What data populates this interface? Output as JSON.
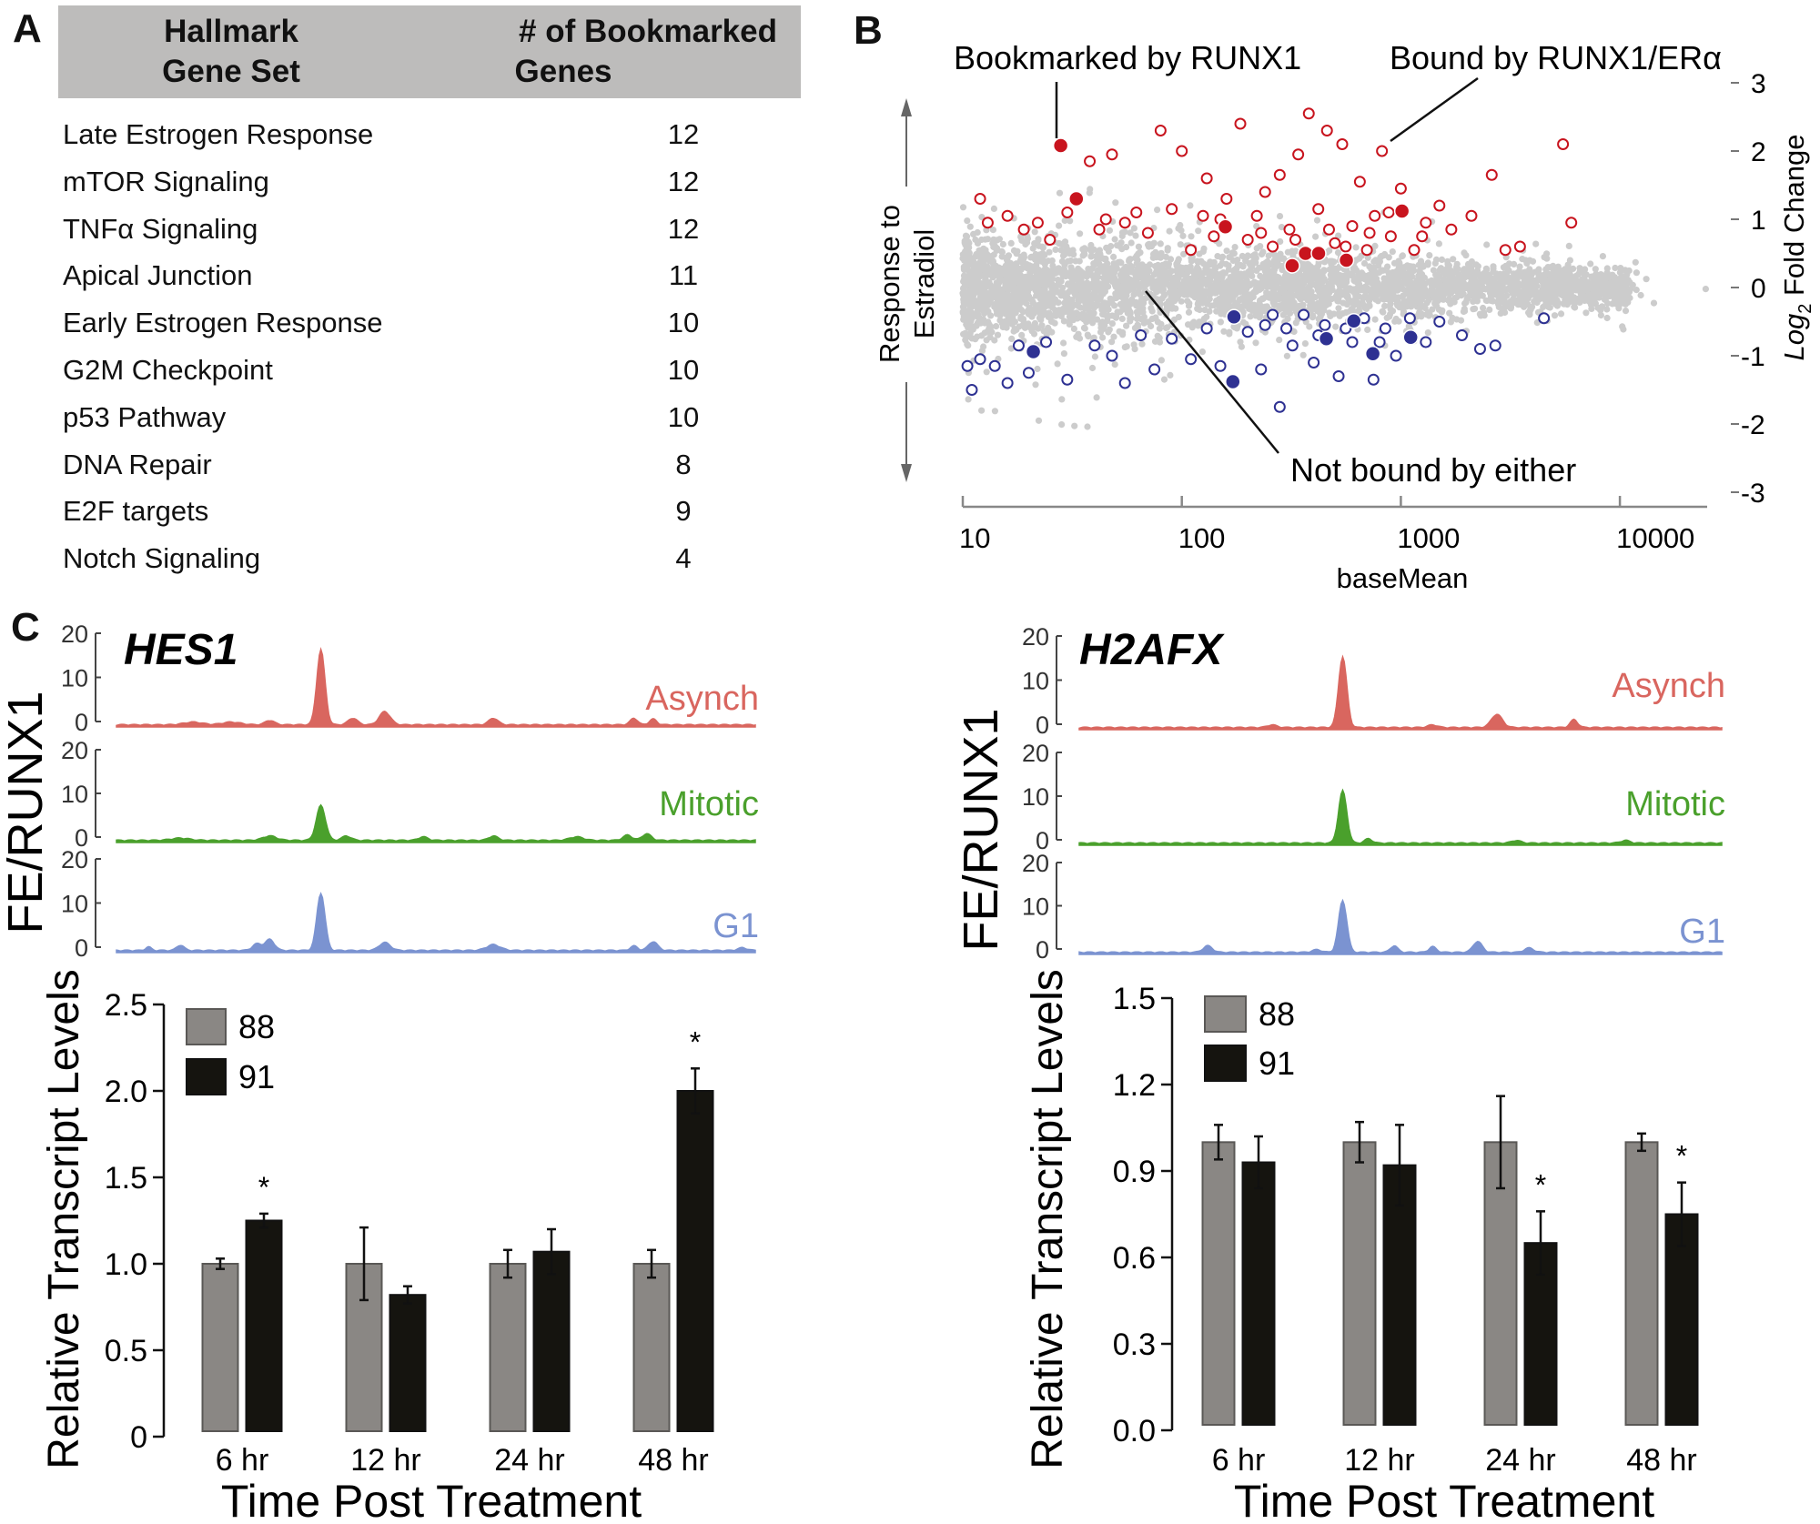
{
  "panel_labels": {
    "a": "A",
    "b": "B",
    "c": "C"
  },
  "panel_a": {
    "headers": [
      "Hallmark\nGene Set",
      "# of Bookmarked\nGenes"
    ],
    "header_lines": [
      [
        "Hallmark",
        "Gene Set"
      ],
      [
        "# of Bookmarked",
        "Genes"
      ]
    ],
    "rows": [
      {
        "name": "Late Estrogen Response",
        "count": "12"
      },
      {
        "name": "mTOR Signaling",
        "count": "12"
      },
      {
        "name": "TNFα Signaling",
        "count": "12"
      },
      {
        "name": "Apical Junction",
        "count": "11"
      },
      {
        "name": "Early Estrogen Response",
        "count": "10"
      },
      {
        "name": "G2M Checkpoint",
        "count": "10"
      },
      {
        "name": "p53 Pathway",
        "count": "10"
      },
      {
        "name": "DNA Repair",
        "count": "8"
      },
      {
        "name": "E2F targets",
        "count": "9"
      },
      {
        "name": "Notch Signaling",
        "count": "4"
      }
    ]
  },
  "chart_data": [
    {
      "id": "panel-b",
      "type": "scatter",
      "xlabel": "baseMean",
      "ylabel_parts": {
        "prefix": "Log",
        "sub": "2",
        "rest": " Fold Change"
      },
      "left_label": [
        "Response to",
        "Estradiol"
      ],
      "x_scale": "log",
      "xlim": [
        10,
        20000
      ],
      "ylim": [
        -3,
        3
      ],
      "x_ticks": [
        "10",
        "100",
        "1000",
        "10000"
      ],
      "x_tick_values": [
        10,
        100,
        1000,
        10000
      ],
      "y_ticks": [
        "3",
        "2",
        "1",
        "0",
        "-1",
        "-2",
        "-3"
      ],
      "y_tick_values": [
        3,
        2,
        1,
        0,
        -1,
        -2,
        -3
      ],
      "annotations": {
        "bookmarked": "Bookmarked by RUNX1",
        "bound": "Bound by RUNX1/ERα",
        "not_bound": "Not bound by either"
      },
      "colors": {
        "not_bound": "#cccccc",
        "up": "#c8141e",
        "down": "#2e3192"
      },
      "series": {
        "up_bound": [
          [
            12,
            1.3
          ],
          [
            13,
            0.95
          ],
          [
            16,
            1.05
          ],
          [
            19,
            0.85
          ],
          [
            22,
            0.95
          ],
          [
            25,
            0.7
          ],
          [
            30,
            1.1
          ],
          [
            38,
            1.85
          ],
          [
            42,
            0.85
          ],
          [
            48,
            1.95
          ],
          [
            55,
            0.95
          ],
          [
            62,
            1.1
          ],
          [
            70,
            0.8
          ],
          [
            80,
            2.3
          ],
          [
            90,
            1.15
          ],
          [
            100,
            2.0
          ],
          [
            110,
            0.55
          ],
          [
            125,
            1.05
          ],
          [
            130,
            1.6
          ],
          [
            140,
            0.75
          ],
          [
            160,
            1.3
          ],
          [
            185,
            2.4
          ],
          [
            200,
            0.7
          ],
          [
            220,
            1.05
          ],
          [
            240,
            1.4
          ],
          [
            260,
            0.6
          ],
          [
            280,
            1.65
          ],
          [
            310,
            0.85
          ],
          [
            340,
            1.95
          ],
          [
            380,
            2.55
          ],
          [
            420,
            1.15
          ],
          [
            460,
            2.3
          ],
          [
            500,
            0.65
          ],
          [
            540,
            2.1
          ],
          [
            600,
            0.9
          ],
          [
            650,
            1.55
          ],
          [
            700,
            0.55
          ],
          [
            760,
            1.05
          ],
          [
            820,
            2.0
          ],
          [
            900,
            0.75
          ],
          [
            1000,
            1.45
          ],
          [
            1150,
            0.55
          ],
          [
            1300,
            0.95
          ],
          [
            1500,
            1.2
          ],
          [
            1700,
            0.85
          ],
          [
            2100,
            1.05
          ],
          [
            2600,
            1.65
          ],
          [
            3000,
            0.55
          ],
          [
            3500,
            0.6
          ],
          [
            5500,
            2.1
          ],
          [
            6000,
            0.95
          ],
          [
            45,
            1.0
          ],
          [
            150,
            1.0
          ],
          [
            230,
            0.8
          ],
          [
            330,
            0.7
          ],
          [
            470,
            0.85
          ],
          [
            560,
            0.6
          ],
          [
            720,
            0.8
          ],
          [
            880,
            1.1
          ],
          [
            1250,
            0.75
          ]
        ],
        "up_bookmarked": [
          [
            28,
            2.08
          ],
          [
            33,
            1.3
          ],
          [
            158,
            0.89
          ],
          [
            319,
            0.32
          ],
          [
            367,
            0.5
          ],
          [
            421,
            0.5
          ],
          [
            564,
            0.4
          ],
          [
            1012,
            1.12
          ]
        ],
        "down_bound": [
          [
            10.5,
            -1.15
          ],
          [
            11,
            -1.5
          ],
          [
            12,
            -1.05
          ],
          [
            14,
            -1.15
          ],
          [
            16,
            -1.4
          ],
          [
            18,
            -0.85
          ],
          [
            20,
            -1.25
          ],
          [
            24,
            -0.8
          ],
          [
            30,
            -1.35
          ],
          [
            40,
            -0.85
          ],
          [
            48,
            -1.0
          ],
          [
            55,
            -1.4
          ],
          [
            65,
            -0.7
          ],
          [
            75,
            -1.2
          ],
          [
            90,
            -0.75
          ],
          [
            110,
            -1.05
          ],
          [
            130,
            -0.6
          ],
          [
            150,
            -1.15
          ],
          [
            200,
            -0.65
          ],
          [
            230,
            -1.2
          ],
          [
            260,
            -0.4
          ],
          [
            280,
            -1.75
          ],
          [
            320,
            -0.85
          ],
          [
            360,
            -0.4
          ],
          [
            400,
            -1.1
          ],
          [
            450,
            -0.55
          ],
          [
            520,
            -1.3
          ],
          [
            600,
            -0.8
          ],
          [
            680,
            -0.45
          ],
          [
            750,
            -1.35
          ],
          [
            850,
            -0.6
          ],
          [
            950,
            -1.0
          ],
          [
            1100,
            -0.45
          ],
          [
            1300,
            -0.8
          ],
          [
            1500,
            -0.5
          ],
          [
            1900,
            -0.7
          ],
          [
            2300,
            -0.9
          ],
          [
            2700,
            -0.85
          ],
          [
            4500,
            -0.45
          ],
          [
            240,
            -0.55
          ],
          [
            300,
            -0.6
          ],
          [
            420,
            -0.7
          ],
          [
            560,
            -0.6
          ],
          [
            800,
            -0.8
          ]
        ],
        "down_bookmarked": [
          [
            21,
            -0.94
          ],
          [
            173,
            -0.43
          ],
          [
            171,
            -1.38
          ],
          [
            457,
            -0.75
          ],
          [
            610,
            -0.49
          ],
          [
            745,
            -0.97
          ],
          [
            1109,
            -0.73
          ]
        ]
      }
    },
    {
      "id": "panel-c-hes1-tracks",
      "type": "area",
      "gene": "HES1",
      "ylabel": "FE/RUNX1",
      "y_ticks": [
        "20",
        "10",
        "0"
      ],
      "ylim": [
        0,
        20
      ],
      "x_unit": "bin",
      "tracks": [
        {
          "name": "Asynch",
          "color": "#d9665f",
          "peaks": [
            [
              32,
              17,
              0.9
            ],
            [
              42,
              3,
              1.2
            ],
            [
              37,
              1.5,
              1
            ],
            [
              59,
              1.5,
              1
            ],
            [
              81,
              1.5,
              0.8
            ],
            [
              84,
              1.3,
              0.8
            ],
            [
              24,
              1,
              1
            ],
            [
              12,
              0.6,
              2
            ],
            [
              18,
              0.6,
              2
            ]
          ]
        },
        {
          "name": "Mitotic",
          "color": "#4aa02c",
          "peaks": [
            [
              32,
              8,
              1
            ],
            [
              36,
              1,
              1
            ],
            [
              24,
              1,
              1.5
            ],
            [
              59,
              1,
              1
            ],
            [
              80,
              1.2,
              1
            ],
            [
              83,
              1.5,
              1
            ],
            [
              48,
              0.8,
              1
            ],
            [
              72,
              0.8,
              1.5
            ],
            [
              10,
              0.5,
              2
            ]
          ]
        },
        {
          "name": "G1",
          "color": "#7b93d1",
          "peaks": [
            [
              32,
              13,
              0.9
            ],
            [
              24,
              2.5,
              1
            ],
            [
              22,
              1.5,
              1
            ],
            [
              42,
              1.8,
              1.2
            ],
            [
              59,
              1.3,
              1.5
            ],
            [
              84,
              2,
              1
            ],
            [
              81,
              1,
              0.8
            ],
            [
              10,
              1.2,
              0.8
            ],
            [
              5,
              0.8,
              0.6
            ],
            [
              98,
              0.6,
              1
            ]
          ]
        }
      ]
    },
    {
      "id": "panel-c-h2afx-tracks",
      "type": "area",
      "gene": "H2AFX",
      "ylabel": "FE/RUNX1",
      "y_ticks": [
        "20",
        "10",
        "0"
      ],
      "ylim": [
        0,
        20
      ],
      "x_unit": "bin",
      "tracks": [
        {
          "name": "Asynch",
          "color": "#d9665f",
          "peaks": [
            [
              41,
              16,
              0.9
            ],
            [
              65,
              3,
              1.2
            ],
            [
              77,
              1.8,
              0.8
            ],
            [
              30,
              0.6,
              1
            ],
            [
              55,
              0.6,
              1
            ]
          ]
        },
        {
          "name": "Mitotic",
          "color": "#4aa02c",
          "peaks": [
            [
              41,
              12,
              0.9
            ],
            [
              45,
              1,
              0.8
            ],
            [
              68,
              0.6,
              1
            ],
            [
              85,
              0.6,
              1
            ]
          ]
        },
        {
          "name": "G1",
          "color": "#7b93d1",
          "peaks": [
            [
              41,
              12,
              0.9
            ],
            [
              20,
              1.5,
              1
            ],
            [
              49,
              1.5,
              0.8
            ],
            [
              55,
              1.3,
              0.8
            ],
            [
              62,
              2.5,
              1
            ],
            [
              70,
              1,
              1
            ],
            [
              37,
              0.6,
              1
            ]
          ]
        }
      ]
    },
    {
      "id": "panel-c-hes1-bars",
      "type": "bar",
      "xlabel": "Time Post Treatment",
      "ylabel": "Relative Transcript Levels",
      "categories": [
        "6 hr",
        "12 hr",
        "24 hr",
        "48 hr"
      ],
      "ylim": [
        0,
        2.5
      ],
      "y_ticks": [
        "0",
        "0.5",
        "1.0",
        "1.5",
        "2.0",
        "2.5"
      ],
      "y_tick_values": [
        0,
        0.5,
        1.0,
        1.5,
        2.0,
        2.5
      ],
      "series": [
        {
          "name": "88",
          "color": "#8a8784",
          "values": [
            1.0,
            1.0,
            1.0,
            1.0
          ],
          "errors": [
            0.03,
            0.21,
            0.08,
            0.08
          ],
          "significant": [
            false,
            false,
            false,
            false
          ]
        },
        {
          "name": "91",
          "color": "#15140f",
          "values": [
            1.25,
            0.82,
            1.07,
            2.0
          ],
          "errors": [
            0.04,
            0.05,
            0.13,
            0.13
          ],
          "significant": [
            true,
            false,
            false,
            true
          ]
        }
      ],
      "significance_mark": "*",
      "legend": "top-left"
    },
    {
      "id": "panel-c-h2afx-bars",
      "type": "bar",
      "xlabel": "Time Post Treatment",
      "ylabel": "Relative Transcript Levels",
      "categories": [
        "6 hr",
        "12 hr",
        "24 hr",
        "48 hr"
      ],
      "ylim": [
        0,
        1.5
      ],
      "y_ticks": [
        "0.0",
        "0.3",
        "0.6",
        "0.9",
        "1.2",
        "1.5"
      ],
      "y_tick_values": [
        0,
        0.3,
        0.6,
        0.9,
        1.2,
        1.5
      ],
      "series": [
        {
          "name": "88",
          "color": "#8a8784",
          "values": [
            1.0,
            1.0,
            1.0,
            1.0
          ],
          "errors": [
            0.06,
            0.07,
            0.16,
            0.03
          ],
          "significant": [
            false,
            false,
            false,
            false
          ]
        },
        {
          "name": "91",
          "color": "#15140f",
          "values": [
            0.93,
            0.92,
            0.65,
            0.75
          ],
          "errors": [
            0.09,
            0.14,
            0.11,
            0.11
          ],
          "significant": [
            false,
            false,
            true,
            true
          ]
        }
      ],
      "significance_mark": "*",
      "legend": "top-left"
    }
  ]
}
